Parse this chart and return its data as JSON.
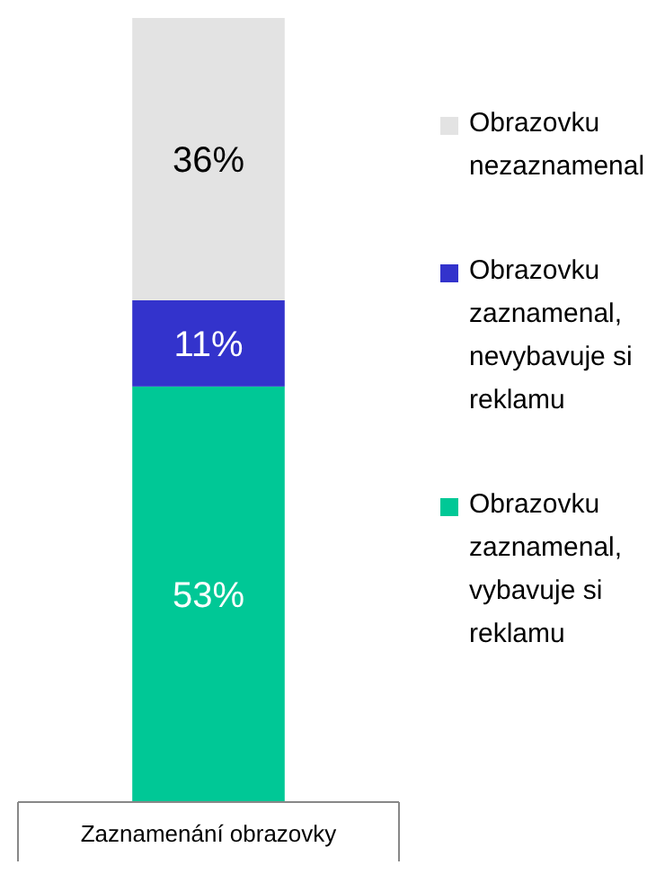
{
  "chart_data": {
    "type": "bar",
    "stacked": true,
    "categories": [
      "Zaznamenání obrazovky"
    ],
    "legend": "right",
    "series": [
      {
        "name": "Obrazovku zaznamenal, vybavuje si reklamu",
        "color": "#00c896",
        "values": [
          53
        ],
        "value_labels": [
          "53%"
        ]
      },
      {
        "name": "Obrazovku zaznamenal, nevybavuje si reklamu",
        "color": "#3333cc",
        "values": [
          11
        ],
        "value_labels": [
          "11%"
        ]
      },
      {
        "name": "Obrazovku nezaznamenal",
        "color": "#e3e3e3",
        "values": [
          36
        ],
        "value_labels": [
          "36%"
        ]
      }
    ]
  }
}
